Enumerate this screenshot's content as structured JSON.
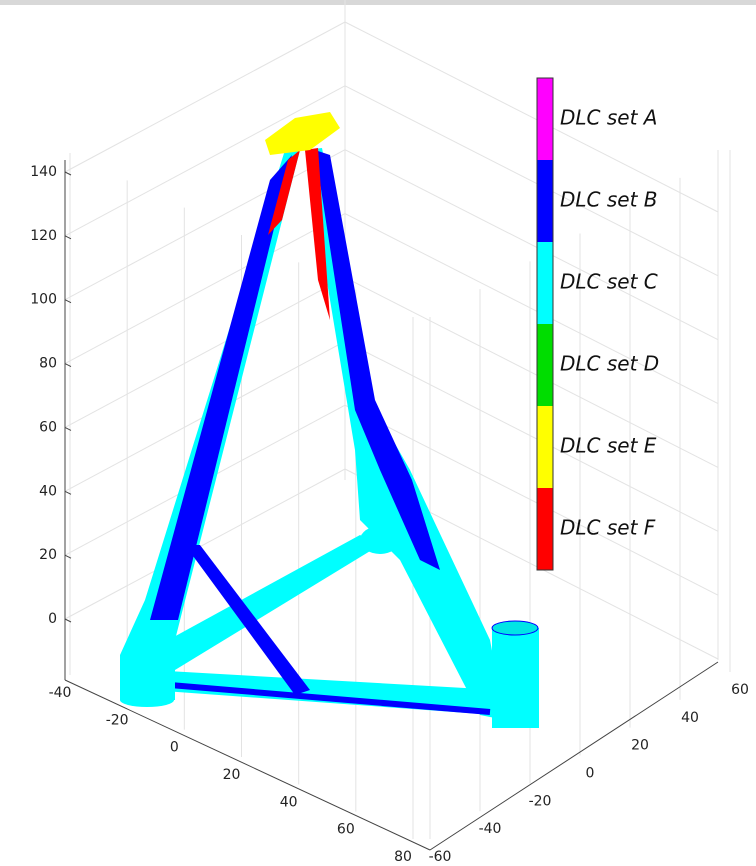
{
  "chart_data": {
    "type": "surface3d",
    "zticks": [
      0,
      20,
      40,
      60,
      80,
      100,
      120,
      140
    ],
    "xticks": [
      -40,
      -20,
      0,
      20,
      40,
      60,
      80
    ],
    "yticks": [
      -60,
      -40,
      -20,
      0,
      20,
      40,
      60
    ],
    "grid": true,
    "colorbar": {
      "labels": [
        "DLC set A",
        "DLC set B",
        "DLC set C",
        "DLC set D",
        "DLC set E",
        "DLC set F"
      ],
      "colors": [
        "#ff00ff",
        "#0000ff",
        "#00ffff",
        "#00dd00",
        "#ffff00",
        "#ff0000"
      ]
    }
  }
}
